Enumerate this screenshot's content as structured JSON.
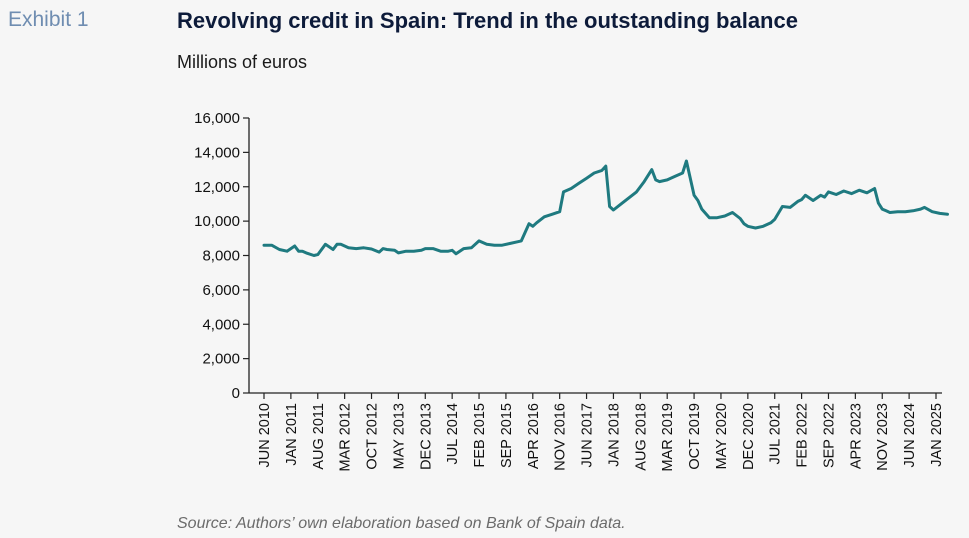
{
  "header": {
    "exhibit": "Exhibit 1",
    "title": "Revolving credit in Spain: Trend in the outstanding balance",
    "subtitle": "Millions of euros"
  },
  "footer": {
    "source": "Source: Authors’ own elaboration based on Bank of Spain data."
  },
  "chart_data": {
    "type": "line",
    "title": "Revolving credit in Spain: Trend in the outstanding balance",
    "subtitle": "Millions of euros",
    "xlabel": "",
    "ylabel": "",
    "ylim": [
      0,
      16000
    ],
    "yticks": [
      0,
      2000,
      4000,
      6000,
      8000,
      10000,
      12000,
      14000,
      16000
    ],
    "ytick_labels": [
      "0",
      "2,000",
      "4,000",
      "6,000",
      "8,000",
      "10,000",
      "12,000",
      "14,000",
      "16,000"
    ],
    "xtick_labels": [
      "JUN 2010",
      "JAN 2011",
      "AUG 2011",
      "MAR 2012",
      "OCT 2012",
      "MAY 2013",
      "DEC 2013",
      "JUL 2014",
      "FEB 2015",
      "SEP 2015",
      "APR 2016",
      "NOV 2016",
      "JUN 2017",
      "JAN 2018",
      "AUG 2018",
      "MAR 2019",
      "OCT 2019",
      "MAY 2020",
      "DEC 2020",
      "JUL 2021",
      "FEB 2022",
      "SEP 2022",
      "APR 2023",
      "NOV 2023",
      "JUN 2024",
      "JAN 2025"
    ],
    "line_color": "#1f7a80",
    "grid": false,
    "legend": "none",
    "series": [
      {
        "x": [
          "2010-06",
          "2010-08",
          "2010-10",
          "2010-12",
          "2011-02",
          "2011-03",
          "2011-04",
          "2011-05",
          "2011-07",
          "2011-08",
          "2011-10",
          "2011-12",
          "2012-01",
          "2012-02",
          "2012-04",
          "2012-06",
          "2012-08",
          "2012-10",
          "2012-12",
          "2013-01",
          "2013-02",
          "2013-04",
          "2013-05",
          "2013-07",
          "2013-09",
          "2013-11",
          "2013-12",
          "2014-02",
          "2014-04",
          "2014-06",
          "2014-07",
          "2014-08",
          "2014-10",
          "2014-12",
          "2015-02",
          "2015-04",
          "2015-06",
          "2015-08",
          "2015-10",
          "2015-12",
          "2016-01",
          "2016-03",
          "2016-04",
          "2016-05",
          "2016-07",
          "2016-09",
          "2016-11",
          "2016-12",
          "2017-02",
          "2017-04",
          "2017-06",
          "2017-08",
          "2017-10",
          "2017-11",
          "2017-12",
          "2018-01",
          "2018-03",
          "2018-05",
          "2018-07",
          "2018-09",
          "2018-11",
          "2018-12",
          "2019-01",
          "2019-03",
          "2019-05",
          "2019-07",
          "2019-08",
          "2019-10",
          "2019-11",
          "2019-12",
          "2020-02",
          "2020-04",
          "2020-06",
          "2020-08",
          "2020-10",
          "2020-11",
          "2020-12",
          "2021-02",
          "2021-04",
          "2021-06",
          "2021-07",
          "2021-09",
          "2021-11",
          "2022-01",
          "2022-02",
          "2022-03",
          "2022-05",
          "2022-07",
          "2022-08",
          "2022-09",
          "2022-11",
          "2023-01",
          "2023-03",
          "2023-05",
          "2023-07",
          "2023-09",
          "2023-10",
          "2023-11",
          "2023-12",
          "2024-01",
          "2024-03",
          "2024-05",
          "2024-07",
          "2024-09",
          "2024-10",
          "2024-12",
          "2025-02",
          "2025-04"
        ],
        "y": [
          8600,
          8600,
          8350,
          8250,
          8550,
          8250,
          8250,
          8150,
          8000,
          8050,
          8650,
          8350,
          8650,
          8650,
          8450,
          8400,
          8450,
          8380,
          8200,
          8400,
          8350,
          8300,
          8150,
          8250,
          8250,
          8300,
          8400,
          8400,
          8250,
          8250,
          8300,
          8100,
          8400,
          8450,
          8850,
          8650,
          8600,
          8600,
          8700,
          8800,
          8850,
          9850,
          9700,
          9900,
          10250,
          10400,
          10550,
          11700,
          11900,
          12200,
          12500,
          12800,
          12950,
          13200,
          10850,
          10650,
          11000,
          11350,
          11700,
          12300,
          13000,
          12400,
          12300,
          12400,
          12600,
          12800,
          13500,
          11500,
          11200,
          10700,
          10200,
          10200,
          10300,
          10500,
          10150,
          9850,
          9700,
          9600,
          9700,
          9900,
          10100,
          10850,
          10800,
          11150,
          11250,
          11500,
          11200,
          11500,
          11400,
          11700,
          11550,
          11750,
          11600,
          11800,
          11650,
          11900,
          11050,
          10700,
          10600,
          10500,
          10550,
          10550,
          10600,
          10700,
          10800,
          10550,
          10450,
          10400
        ]
      }
    ]
  }
}
